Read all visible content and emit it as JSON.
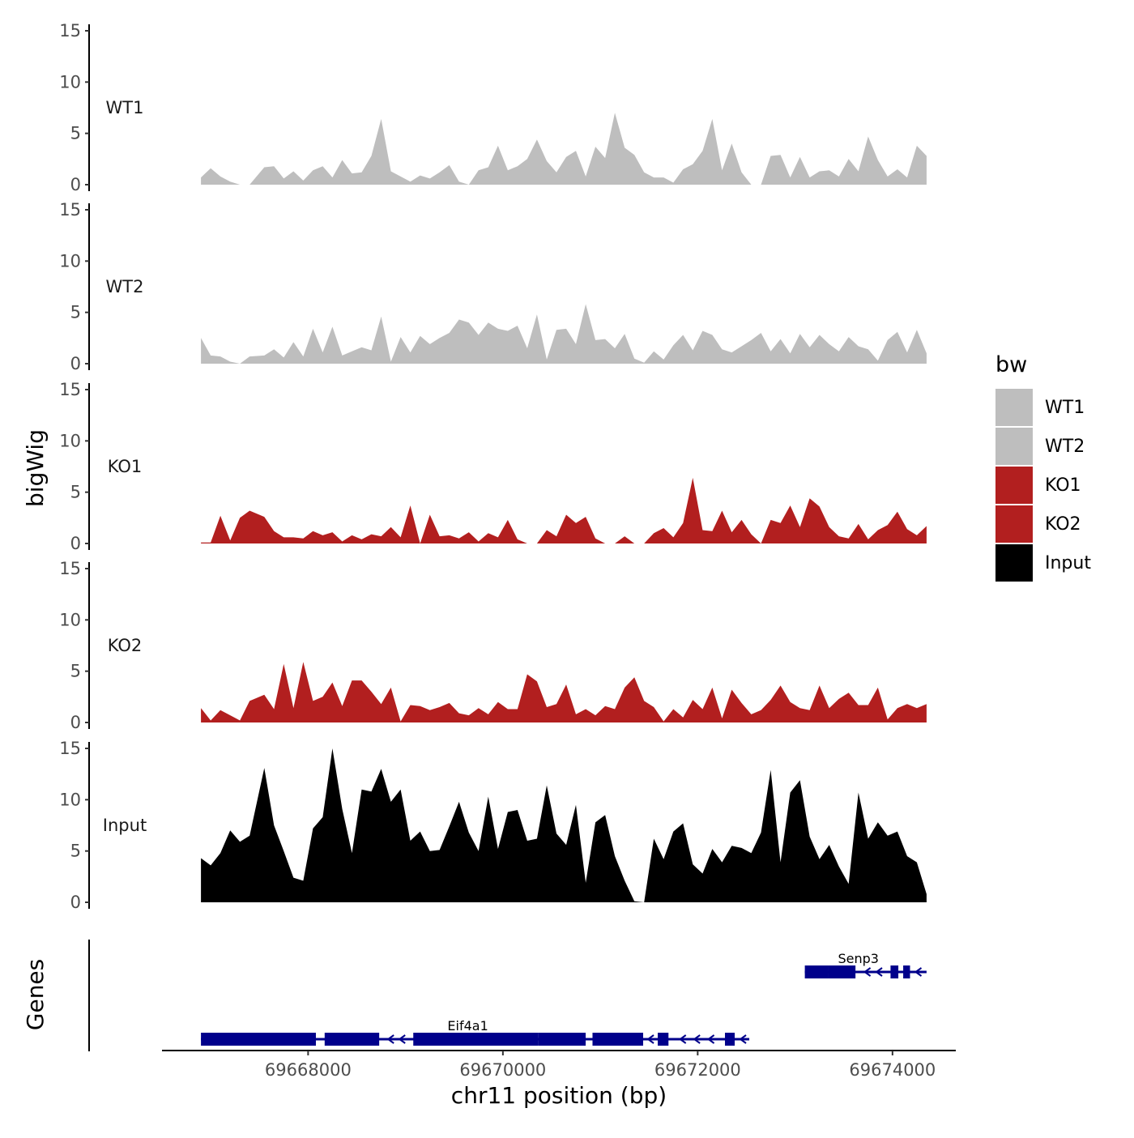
{
  "chart_data": {
    "type": "area",
    "x_axis": {
      "title": "chr11 position (bp)",
      "range": [
        69666500,
        69674650
      ],
      "ticks": [
        69668000,
        69670000,
        69672000,
        69674000
      ],
      "tick_labels": [
        "69668000",
        "69670000",
        "69672000",
        "69674000"
      ]
    },
    "y_axis": {
      "title": "bigWig",
      "range": [
        0,
        15
      ],
      "ticks": [
        0,
        5,
        10,
        15
      ],
      "tick_labels": [
        "0",
        "5",
        "10",
        "15"
      ]
    },
    "genes_axis_title": "Genes",
    "legend": {
      "title": "bw",
      "position": "right",
      "entries": [
        {
          "label": "WT1",
          "color": "#bebebe"
        },
        {
          "label": "WT2",
          "color": "#bebebe"
        },
        {
          "label": "KO1",
          "color": "#b21f1f"
        },
        {
          "label": "KO2",
          "color": "#b21f1f"
        },
        {
          "label": "Input",
          "color": "#000000"
        }
      ]
    },
    "colors": {
      "WT": "#bebebe",
      "KO": "#b21f1f",
      "Input": "#000000",
      "gene": "#00008b"
    },
    "series": [
      {
        "name": "WT1",
        "color": "#bebebe",
        "x": [
          69666900,
          69667000,
          69667100,
          69667200,
          69667300,
          69667400,
          69667550,
          69667650,
          69667750,
          69667850,
          69667950,
          69668050,
          69668150,
          69668250,
          69668350,
          69668450,
          69668550,
          69668650,
          69668750,
          69668850,
          69668950,
          69669050,
          69669150,
          69669250,
          69669350,
          69669450,
          69669550,
          69669650,
          69669750,
          69669850,
          69669950,
          69670050,
          69670150,
          69670250,
          69670350,
          69670450,
          69670550,
          69670650,
          69670750,
          69670850,
          69670950,
          69671050,
          69671150,
          69671250,
          69671350,
          69671450,
          69671550,
          69671650,
          69671750,
          69671850,
          69671950,
          69672050,
          69672150,
          69672250,
          69672350,
          69672450,
          69672550,
          69672650,
          69672750,
          69672850,
          69672950,
          69673050,
          69673150,
          69673250,
          69673350,
          69673450,
          69673550,
          69673650,
          69673750,
          69673850,
          69673950,
          69674050,
          69674150,
          69674250,
          69674350
        ],
        "y": [
          0.7,
          1.6,
          0.8,
          0.3,
          0,
          0,
          1.7,
          1.8,
          0.6,
          1.3,
          0.4,
          1.4,
          1.8,
          0.7,
          2.4,
          1.1,
          1.2,
          2.8,
          6.4,
          1.3,
          0.8,
          0.3,
          0.9,
          0.6,
          1.2,
          1.9,
          0.3,
          0,
          1.4,
          1.7,
          3.8,
          1.4,
          1.8,
          2.5,
          4.4,
          2.3,
          1.2,
          2.7,
          3.3,
          0.8,
          3.7,
          2.6,
          7.0,
          3.6,
          2.9,
          1.2,
          0.7,
          0.7,
          0.2,
          1.5,
          2.0,
          3.3,
          6.4,
          1.4,
          4.0,
          1.2,
          0,
          0,
          2.8,
          2.9,
          0.7,
          2.7,
          0.7,
          1.3,
          1.4,
          0.8,
          2.5,
          1.3,
          4.7,
          2.4,
          0.8,
          1.5,
          0.7,
          3.8,
          2.8
        ]
      },
      {
        "name": "WT2",
        "color": "#bebebe",
        "x": [
          69666900,
          69667000,
          69667100,
          69667200,
          69667300,
          69667400,
          69667550,
          69667650,
          69667750,
          69667850,
          69667950,
          69668050,
          69668150,
          69668250,
          69668350,
          69668450,
          69668550,
          69668650,
          69668750,
          69668850,
          69668950,
          69669050,
          69669150,
          69669250,
          69669350,
          69669450,
          69669550,
          69669650,
          69669750,
          69669850,
          69669950,
          69670050,
          69670150,
          69670250,
          69670350,
          69670450,
          69670550,
          69670650,
          69670750,
          69670850,
          69670950,
          69671050,
          69671150,
          69671250,
          69671350,
          69671450,
          69671550,
          69671650,
          69671750,
          69671850,
          69671950,
          69672050,
          69672150,
          69672250,
          69672350,
          69672450,
          69672550,
          69672650,
          69672750,
          69672850,
          69672950,
          69673050,
          69673150,
          69673250,
          69673350,
          69673450,
          69673550,
          69673650,
          69673750,
          69673850,
          69673950,
          69674050,
          69674150,
          69674250,
          69674350
        ],
        "y": [
          2.5,
          0.8,
          0.7,
          0.2,
          0,
          0.7,
          0.8,
          1.4,
          0.6,
          2.1,
          0.7,
          3.4,
          1.1,
          3.6,
          0.8,
          1.2,
          1.6,
          1.3,
          4.6,
          0.2,
          2.6,
          1.1,
          2.7,
          1.9,
          2.5,
          3.0,
          4.3,
          4.0,
          2.8,
          4.0,
          3.4,
          3.2,
          3.7,
          1.5,
          4.8,
          0.4,
          3.3,
          3.4,
          1.9,
          5.8,
          2.3,
          2.4,
          1.5,
          2.9,
          0.5,
          0.1,
          1.2,
          0.4,
          1.8,
          2.8,
          1.3,
          3.2,
          2.8,
          1.4,
          1.1,
          1.7,
          2.3,
          3.0,
          1.2,
          2.4,
          1.0,
          2.9,
          1.6,
          2.8,
          1.9,
          1.2,
          2.6,
          1.7,
          1.4,
          0.3,
          2.3,
          3.1,
          1.1,
          3.3,
          1.0
        ]
      },
      {
        "name": "KO1",
        "color": "#b21f1f",
        "x": [
          69666900,
          69667000,
          69667100,
          69667200,
          69667300,
          69667400,
          69667550,
          69667650,
          69667750,
          69667850,
          69667950,
          69668050,
          69668150,
          69668250,
          69668350,
          69668450,
          69668550,
          69668650,
          69668750,
          69668850,
          69668950,
          69669050,
          69669150,
          69669250,
          69669350,
          69669450,
          69669550,
          69669650,
          69669750,
          69669850,
          69669950,
          69670050,
          69670150,
          69670250,
          69670350,
          69670450,
          69670550,
          69670650,
          69670750,
          69670850,
          69670950,
          69671050,
          69671150,
          69671250,
          69671350,
          69671450,
          69671550,
          69671650,
          69671750,
          69671850,
          69671950,
          69672050,
          69672150,
          69672250,
          69672350,
          69672450,
          69672550,
          69672650,
          69672750,
          69672850,
          69672950,
          69673050,
          69673150,
          69673250,
          69673350,
          69673450,
          69673550,
          69673650,
          69673750,
          69673850,
          69673950,
          69674050,
          69674150,
          69674250,
          69674350
        ],
        "y": [
          0.1,
          0.1,
          2.7,
          0.3,
          2.5,
          3.2,
          2.6,
          1.2,
          0.6,
          0.6,
          0.5,
          1.2,
          0.8,
          1.1,
          0.2,
          0.8,
          0.4,
          0.9,
          0.7,
          1.6,
          0.6,
          3.7,
          0,
          2.8,
          0.7,
          0.8,
          0.5,
          1.1,
          0.2,
          1.0,
          0.6,
          2.3,
          0.4,
          0,
          0,
          1.3,
          0.7,
          2.8,
          2.0,
          2.6,
          0.5,
          0,
          0,
          0.7,
          0,
          0,
          1.0,
          1.5,
          0.6,
          2.0,
          6.4,
          1.3,
          1.2,
          3.2,
          1.1,
          2.3,
          0.9,
          0,
          2.3,
          2.0,
          3.7,
          1.6,
          4.4,
          3.6,
          1.6,
          0.7,
          0.5,
          1.9,
          0.4,
          1.3,
          1.8,
          3.1,
          1.4,
          0.8,
          1.7
        ]
      },
      {
        "name": "KO2",
        "color": "#b21f1f",
        "x": [
          69666900,
          69667000,
          69667100,
          69667200,
          69667300,
          69667400,
          69667550,
          69667650,
          69667750,
          69667850,
          69667950,
          69668050,
          69668150,
          69668250,
          69668350,
          69668450,
          69668550,
          69668650,
          69668750,
          69668850,
          69668950,
          69669050,
          69669150,
          69669250,
          69669350,
          69669450,
          69669550,
          69669650,
          69669750,
          69669850,
          69669950,
          69670050,
          69670150,
          69670250,
          69670350,
          69670450,
          69670550,
          69670650,
          69670750,
          69670850,
          69670950,
          69671050,
          69671150,
          69671250,
          69671350,
          69671450,
          69671550,
          69671650,
          69671750,
          69671850,
          69671950,
          69672050,
          69672150,
          69672250,
          69672350,
          69672450,
          69672550,
          69672650,
          69672750,
          69672850,
          69672950,
          69673050,
          69673150,
          69673250,
          69673350,
          69673450,
          69673550,
          69673650,
          69673750,
          69673850,
          69673950,
          69674050,
          69674150,
          69674250,
          69674350
        ],
        "y": [
          1.4,
          0.2,
          1.2,
          0.7,
          0.2,
          2.1,
          2.7,
          1.3,
          5.7,
          1.4,
          5.9,
          2.1,
          2.5,
          3.9,
          1.6,
          4.1,
          4.1,
          3.0,
          1.8,
          3.4,
          0.1,
          1.7,
          1.6,
          1.2,
          1.5,
          1.9,
          0.9,
          0.7,
          1.4,
          0.8,
          2.0,
          1.3,
          1.3,
          4.7,
          4.0,
          1.5,
          1.8,
          3.7,
          0.8,
          1.3,
          0.7,
          1.6,
          1.3,
          3.4,
          4.4,
          2.1,
          1.5,
          0.1,
          1.3,
          0.5,
          2.2,
          1.3,
          3.4,
          0.4,
          3.2,
          1.9,
          0.8,
          1.2,
          2.2,
          3.6,
          2.0,
          1.4,
          1.2,
          3.6,
          1.4,
          2.3,
          2.9,
          1.7,
          1.7,
          3.4,
          0.3,
          1.4,
          1.8,
          1.4,
          1.8
        ]
      },
      {
        "name": "Input",
        "color": "#000000",
        "x": [
          69666900,
          69667000,
          69667100,
          69667200,
          69667300,
          69667400,
          69667550,
          69667650,
          69667750,
          69667850,
          69667950,
          69668050,
          69668150,
          69668250,
          69668350,
          69668450,
          69668550,
          69668650,
          69668750,
          69668850,
          69668950,
          69669050,
          69669150,
          69669250,
          69669350,
          69669450,
          69669550,
          69669650,
          69669750,
          69669850,
          69669950,
          69670050,
          69670150,
          69670250,
          69670350,
          69670450,
          69670550,
          69670650,
          69670750,
          69670850,
          69670950,
          69671050,
          69671150,
          69671250,
          69671350,
          69671450,
          69671550,
          69671650,
          69671750,
          69671850,
          69671950,
          69672050,
          69672150,
          69672250,
          69672350,
          69672450,
          69672550,
          69672650,
          69672750,
          69672850,
          69672950,
          69673050,
          69673150,
          69673250,
          69673350,
          69673450,
          69673550,
          69673650,
          69673750,
          69673850,
          69673950,
          69674050,
          69674150,
          69674250,
          69674350
        ],
        "y": [
          4.3,
          3.6,
          4.8,
          7.0,
          5.9,
          6.5,
          13.1,
          7.5,
          5.0,
          2.4,
          2.1,
          7.2,
          8.3,
          15.0,
          9.1,
          4.8,
          11.0,
          10.8,
          13.0,
          9.8,
          11.0,
          6.0,
          6.9,
          5.0,
          5.1,
          7.4,
          9.8,
          6.8,
          5.0,
          10.3,
          5.2,
          8.8,
          9.0,
          6.0,
          6.2,
          11.4,
          6.7,
          5.6,
          9.5,
          1.9,
          7.8,
          8.5,
          4.5,
          2.1,
          0.1,
          0,
          6.2,
          4.2,
          6.9,
          7.7,
          3.7,
          2.8,
          5.2,
          3.9,
          5.5,
          5.3,
          4.8,
          6.8,
          12.9,
          3.9,
          10.7,
          11.9,
          6.4,
          4.2,
          5.6,
          3.5,
          1.8,
          10.7,
          6.2,
          7.8,
          6.5,
          6.9,
          4.5,
          3.9,
          0.8
        ]
      }
    ],
    "genes": [
      {
        "name": "Senp3",
        "strand": "-",
        "start": 69673100,
        "end": 69674200,
        "exons": [
          [
            69673100,
            69673340
          ],
          [
            69673340,
            69673620
          ],
          [
            69673980,
            69674060
          ],
          [
            69674110,
            69674180
          ]
        ]
      },
      {
        "name": "Eif4a1",
        "strand": "-",
        "start": 69666900,
        "end": 69672380,
        "exons": [
          [
            69666900,
            69668080
          ],
          [
            69668170,
            69668730
          ],
          [
            69669080,
            69670360
          ],
          [
            69670360,
            69670850
          ],
          [
            69670920,
            69671440
          ],
          [
            69671590,
            69671700
          ],
          [
            69672280,
            69672380
          ]
        ]
      }
    ]
  }
}
